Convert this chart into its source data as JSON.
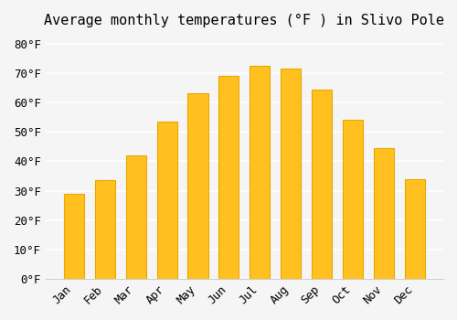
{
  "title": "Average monthly temperatures (°F ) in Slivo Pole",
  "months": [
    "Jan",
    "Feb",
    "Mar",
    "Apr",
    "May",
    "Jun",
    "Jul",
    "Aug",
    "Sep",
    "Oct",
    "Nov",
    "Dec"
  ],
  "values": [
    29,
    33.5,
    42,
    53.5,
    63,
    69,
    72.5,
    71.5,
    64.5,
    54,
    44.5,
    34
  ],
  "bar_color": "#FFC020",
  "bar_edge_color": "#E8A800",
  "background_color": "#f5f5f5",
  "grid_color": "#ffffff",
  "ylim": [
    0,
    83
  ],
  "yticks": [
    0,
    10,
    20,
    30,
    40,
    50,
    60,
    70,
    80
  ],
  "title_fontsize": 11,
  "tick_fontsize": 9,
  "font_family": "monospace"
}
